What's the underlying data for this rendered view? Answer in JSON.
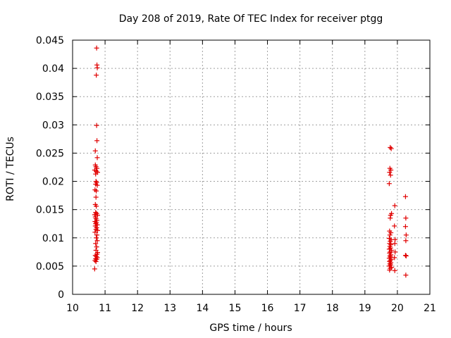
{
  "chart_data": {
    "type": "scatter",
    "title": "Day 208 of 2019, Rate Of TEC Index for receiver ptgg",
    "xlabel": "GPS time / hours",
    "ylabel": "ROTI / TECUs",
    "xlim": [
      10,
      21
    ],
    "ylim": [
      0,
      0.045
    ],
    "xticks": [
      "10",
      "11",
      "12",
      "13",
      "14",
      "15",
      "16",
      "17",
      "18",
      "19",
      "20",
      "21"
    ],
    "yticks": [
      "0",
      "0.005",
      "0.01",
      "0.015",
      "0.02",
      "0.025",
      "0.03",
      "0.035",
      "0.04",
      "0.045"
    ],
    "grid": true,
    "marker": "plus",
    "series_color": "#e00000",
    "series": [
      {
        "points": [
          [
            10.74,
            0.0436
          ],
          [
            10.75,
            0.0406
          ],
          [
            10.76,
            0.0401
          ],
          [
            10.73,
            0.0388
          ],
          [
            10.74,
            0.0299
          ],
          [
            10.75,
            0.0272
          ],
          [
            10.7,
            0.0254
          ],
          [
            10.76,
            0.0242
          ],
          [
            10.7,
            0.0229
          ],
          [
            10.72,
            0.0226
          ],
          [
            10.75,
            0.0223
          ],
          [
            10.68,
            0.022
          ],
          [
            10.73,
            0.0218
          ],
          [
            10.77,
            0.0216
          ],
          [
            10.71,
            0.0213
          ],
          [
            10.72,
            0.02
          ],
          [
            10.74,
            0.0198
          ],
          [
            10.71,
            0.0195
          ],
          [
            10.76,
            0.0193
          ],
          [
            10.69,
            0.0185
          ],
          [
            10.73,
            0.0183
          ],
          [
            10.72,
            0.0172
          ],
          [
            10.7,
            0.0159
          ],
          [
            10.73,
            0.0156
          ],
          [
            10.71,
            0.0145
          ],
          [
            10.74,
            0.0143
          ],
          [
            10.68,
            0.0141
          ],
          [
            10.77,
            0.014
          ],
          [
            10.7,
            0.0137
          ],
          [
            10.72,
            0.0134
          ],
          [
            10.75,
            0.0131
          ],
          [
            10.69,
            0.0129
          ],
          [
            10.73,
            0.0127
          ],
          [
            10.71,
            0.0125
          ],
          [
            10.76,
            0.0123
          ],
          [
            10.7,
            0.0121
          ],
          [
            10.74,
            0.0118
          ],
          [
            10.72,
            0.0115
          ],
          [
            10.77,
            0.0113
          ],
          [
            10.69,
            0.011
          ],
          [
            10.75,
            0.0105
          ],
          [
            10.73,
            0.01
          ],
          [
            10.76,
            0.0095
          ],
          [
            10.71,
            0.009
          ],
          [
            10.74,
            0.0084
          ],
          [
            10.72,
            0.0078
          ],
          [
            10.77,
            0.0074
          ],
          [
            10.75,
            0.0071
          ],
          [
            10.7,
            0.0069
          ],
          [
            10.73,
            0.0067
          ],
          [
            10.76,
            0.0065
          ],
          [
            10.71,
            0.0063
          ],
          [
            10.74,
            0.0062
          ],
          [
            10.69,
            0.006
          ],
          [
            10.72,
            0.0058
          ],
          [
            10.68,
            0.0045
          ],
          [
            19.78,
            0.026
          ],
          [
            19.81,
            0.0258
          ],
          [
            19.77,
            0.0223
          ],
          [
            19.8,
            0.022
          ],
          [
            19.76,
            0.0216
          ],
          [
            19.79,
            0.0211
          ],
          [
            19.75,
            0.0196
          ],
          [
            19.82,
            0.0143
          ],
          [
            19.79,
            0.014
          ],
          [
            19.78,
            0.0135
          ],
          [
            19.76,
            0.0112
          ],
          [
            19.8,
            0.0109
          ],
          [
            19.77,
            0.0105
          ],
          [
            19.75,
            0.0099
          ],
          [
            19.81,
            0.0097
          ],
          [
            19.78,
            0.0094
          ],
          [
            19.76,
            0.009
          ],
          [
            19.8,
            0.0088
          ],
          [
            19.77,
            0.0085
          ],
          [
            19.79,
            0.0082
          ],
          [
            19.75,
            0.008
          ],
          [
            19.82,
            0.0078
          ],
          [
            19.78,
            0.0075
          ],
          [
            19.76,
            0.0073
          ],
          [
            19.8,
            0.007
          ],
          [
            19.77,
            0.0068
          ],
          [
            19.79,
            0.0066
          ],
          [
            19.75,
            0.0064
          ],
          [
            19.81,
            0.0062
          ],
          [
            19.78,
            0.006
          ],
          [
            19.76,
            0.0058
          ],
          [
            19.8,
            0.0056
          ],
          [
            19.77,
            0.0054
          ],
          [
            19.79,
            0.0052
          ],
          [
            19.75,
            0.005
          ],
          [
            19.82,
            0.0048
          ],
          [
            19.78,
            0.0046
          ],
          [
            19.76,
            0.0043
          ],
          [
            19.92,
            0.0157
          ],
          [
            19.91,
            0.0121
          ],
          [
            19.93,
            0.0097
          ],
          [
            19.92,
            0.009
          ],
          [
            19.93,
            0.0075
          ],
          [
            19.91,
            0.0065
          ],
          [
            19.92,
            0.0042
          ],
          [
            20.25,
            0.0173
          ],
          [
            20.26,
            0.0135
          ],
          [
            20.25,
            0.012
          ],
          [
            20.27,
            0.0105
          ],
          [
            20.26,
            0.0095
          ],
          [
            20.25,
            0.0069
          ],
          [
            20.27,
            0.0068
          ],
          [
            20.26,
            0.0034
          ]
        ]
      }
    ]
  }
}
